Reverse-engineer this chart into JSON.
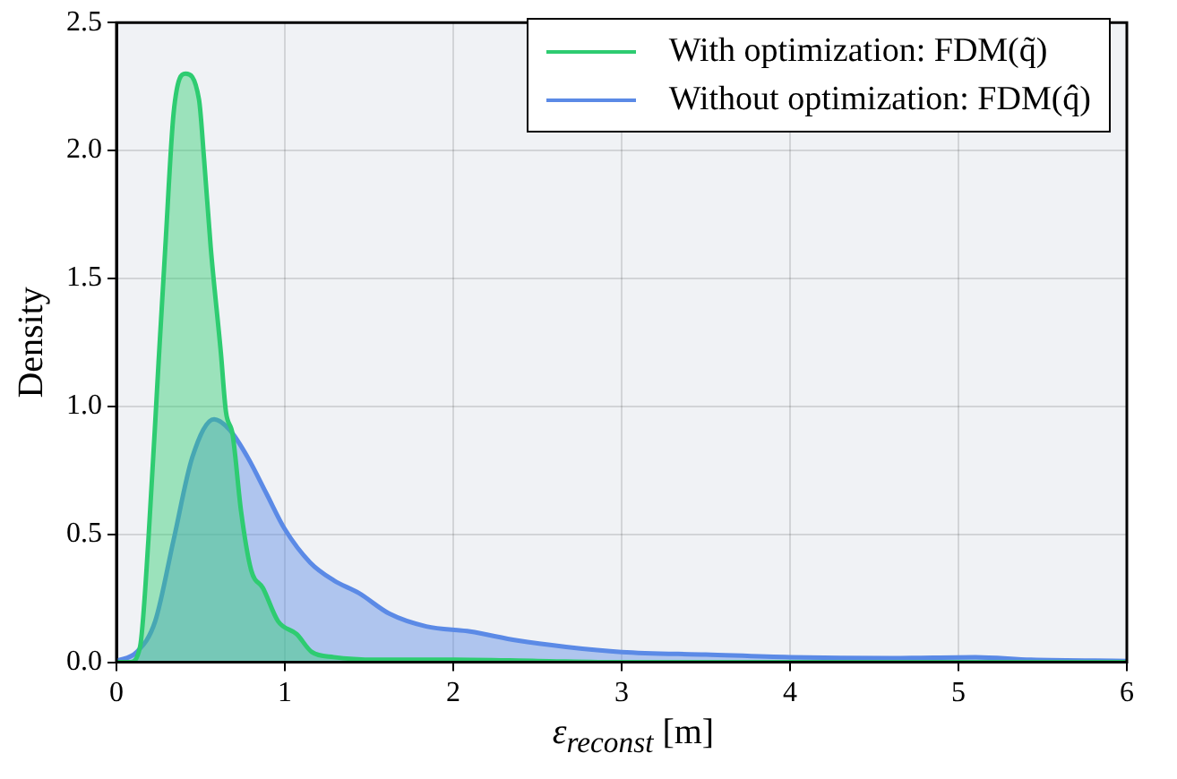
{
  "chart_data": {
    "type": "area",
    "xlabel": "ε$_{reconst}$ [m]",
    "ylabel": "Density",
    "xlim": [
      0,
      6
    ],
    "xticks": [
      0,
      1,
      2,
      3,
      4,
      5,
      6
    ],
    "ylim": [
      0,
      2.5
    ],
    "yticks": [
      {
        "value": 0,
        "label": "0.0"
      },
      0.5,
      {
        "value": 1,
        "label": "1.0"
      },
      1.5,
      {
        "value": 2,
        "label": "2.0"
      },
      2.5
    ],
    "grid": true,
    "legend": "top right",
    "marker": "none",
    "series": [
      {
        "name": "With optimization: FDM(q̃)",
        "color": "#2ecc71",
        "x": [
          0.0,
          0.08,
          0.14,
          0.19,
          0.25,
          0.29,
          0.34,
          0.41,
          0.49,
          0.52,
          0.56,
          0.62,
          0.65,
          0.69,
          0.74,
          0.8,
          0.87,
          0.96,
          1.07,
          1.16,
          1.29,
          1.55,
          2.0,
          2.5,
          3.0,
          4.0,
          5.0,
          6.0
        ],
        "values": [
          0,
          0,
          0.06,
          0.48,
          1.17,
          1.62,
          2.15,
          2.3,
          2.2,
          1.97,
          1.62,
          1.21,
          0.98,
          0.89,
          0.59,
          0.36,
          0.29,
          0.16,
          0.11,
          0.04,
          0.02,
          0.01,
          0.01,
          0.005,
          0,
          0,
          0,
          0
        ]
      },
      {
        "name": "Without optimization: FDM(q̂)",
        "color": "#5b8ae6",
        "x": [
          0.0,
          0.12,
          0.23,
          0.34,
          0.45,
          0.58,
          0.67,
          0.78,
          0.89,
          1.0,
          1.15,
          1.29,
          1.44,
          1.62,
          1.84,
          2.1,
          2.38,
          2.67,
          3.0,
          3.5,
          4.0,
          4.6,
          5.1,
          5.43,
          6.0
        ],
        "values": [
          0.005,
          0.04,
          0.16,
          0.48,
          0.8,
          0.95,
          0.91,
          0.8,
          0.66,
          0.52,
          0.39,
          0.32,
          0.27,
          0.19,
          0.14,
          0.12,
          0.085,
          0.06,
          0.04,
          0.03,
          0.02,
          0.016,
          0.02,
          0.01,
          0.005
        ]
      }
    ]
  }
}
